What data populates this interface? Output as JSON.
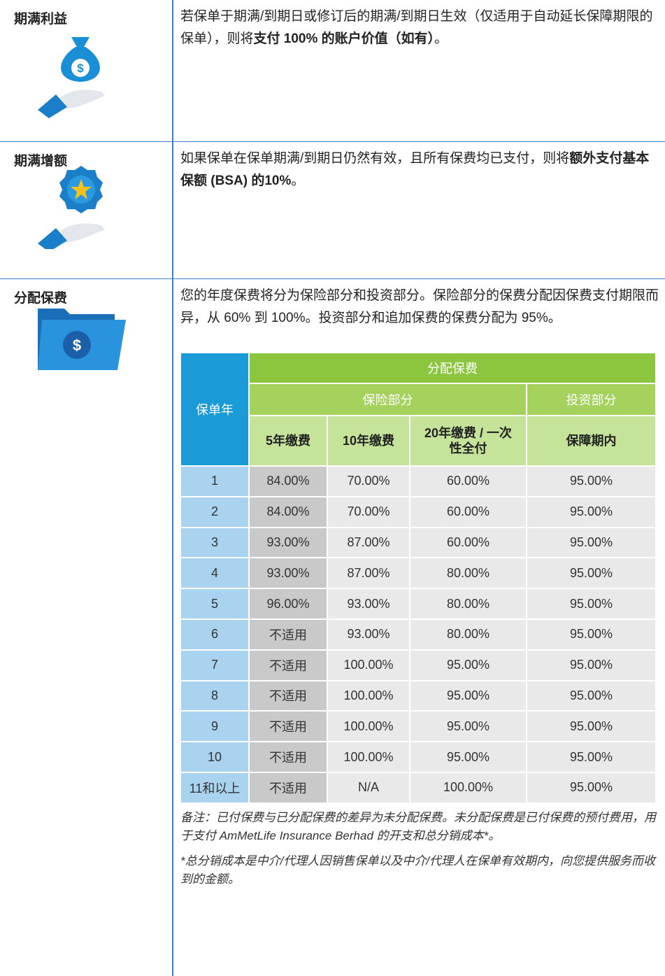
{
  "rows": [
    {
      "label": "期满利益",
      "content": [
        {
          "parts": [
            {
              "text": "若保单于期满/到期日或修订后的期满/到期日生效（仅适用于自动延长保障期限的保单），则将",
              "bold": false
            },
            {
              "text": "支付 100% 的账户价值（如有）",
              "bold": true
            },
            {
              "text": "。",
              "bold": false
            }
          ]
        }
      ]
    },
    {
      "label": "期满增额",
      "content": [
        {
          "parts": [
            {
              "text": "如果保单在保单期满/到期日仍然有效，且所有保费均已支付，则将",
              "bold": false
            },
            {
              "text": "额外支付基本保额 (BSA) 的10%",
              "bold": true
            },
            {
              "text": "。",
              "bold": false
            }
          ]
        }
      ]
    },
    {
      "label": "分配保费",
      "content": [
        {
          "parts": [
            {
              "text": "您的年度保费将分为保险部分和投资部分。保险部分的保费分配因保费支付期限而异，从 60% 到 100%。投资部分和追加保费的保费分配为 95%。",
              "bold": false
            }
          ]
        }
      ]
    }
  ],
  "table": {
    "header": {
      "top": "分配保费",
      "year": "保单年",
      "group1": "保险部分",
      "group2": "投资部分",
      "sub": [
        "5年缴费",
        "10年缴费",
        "20年缴费 / 一次性全付",
        "保障期内"
      ]
    },
    "rows": [
      [
        "1",
        "84.00%",
        "70.00%",
        "60.00%",
        "95.00%"
      ],
      [
        "2",
        "84.00%",
        "70.00%",
        "60.00%",
        "95.00%"
      ],
      [
        "3",
        "93.00%",
        "87.00%",
        "60.00%",
        "95.00%"
      ],
      [
        "4",
        "93.00%",
        "87.00%",
        "80.00%",
        "95.00%"
      ],
      [
        "5",
        "96.00%",
        "93.00%",
        "80.00%",
        "95.00%"
      ],
      [
        "6",
        "不适用",
        "93.00%",
        "80.00%",
        "95.00%"
      ],
      [
        "7",
        "不适用",
        "100.00%",
        "95.00%",
        "95.00%"
      ],
      [
        "8",
        "不适用",
        "100.00%",
        "95.00%",
        "95.00%"
      ],
      [
        "9",
        "不适用",
        "100.00%",
        "95.00%",
        "95.00%"
      ],
      [
        "10",
        "不适用",
        "100.00%",
        "95.00%",
        "95.00%"
      ],
      [
        "11和以上",
        "不适用",
        "N/A",
        "100.00%",
        "95.00%"
      ]
    ]
  },
  "notes": [
    "备注：已付保费与已分配保费的差异为未分配保费。未分配保费是已付保费的预付费用，用于支付 AmMetLife Insurance Berhad 的开支和总分销成本*。",
    "*总分销成本是中介/代理人因销售保单以及中介/代理人在保单有效期内，向您提供服务而收到的金额。"
  ]
}
